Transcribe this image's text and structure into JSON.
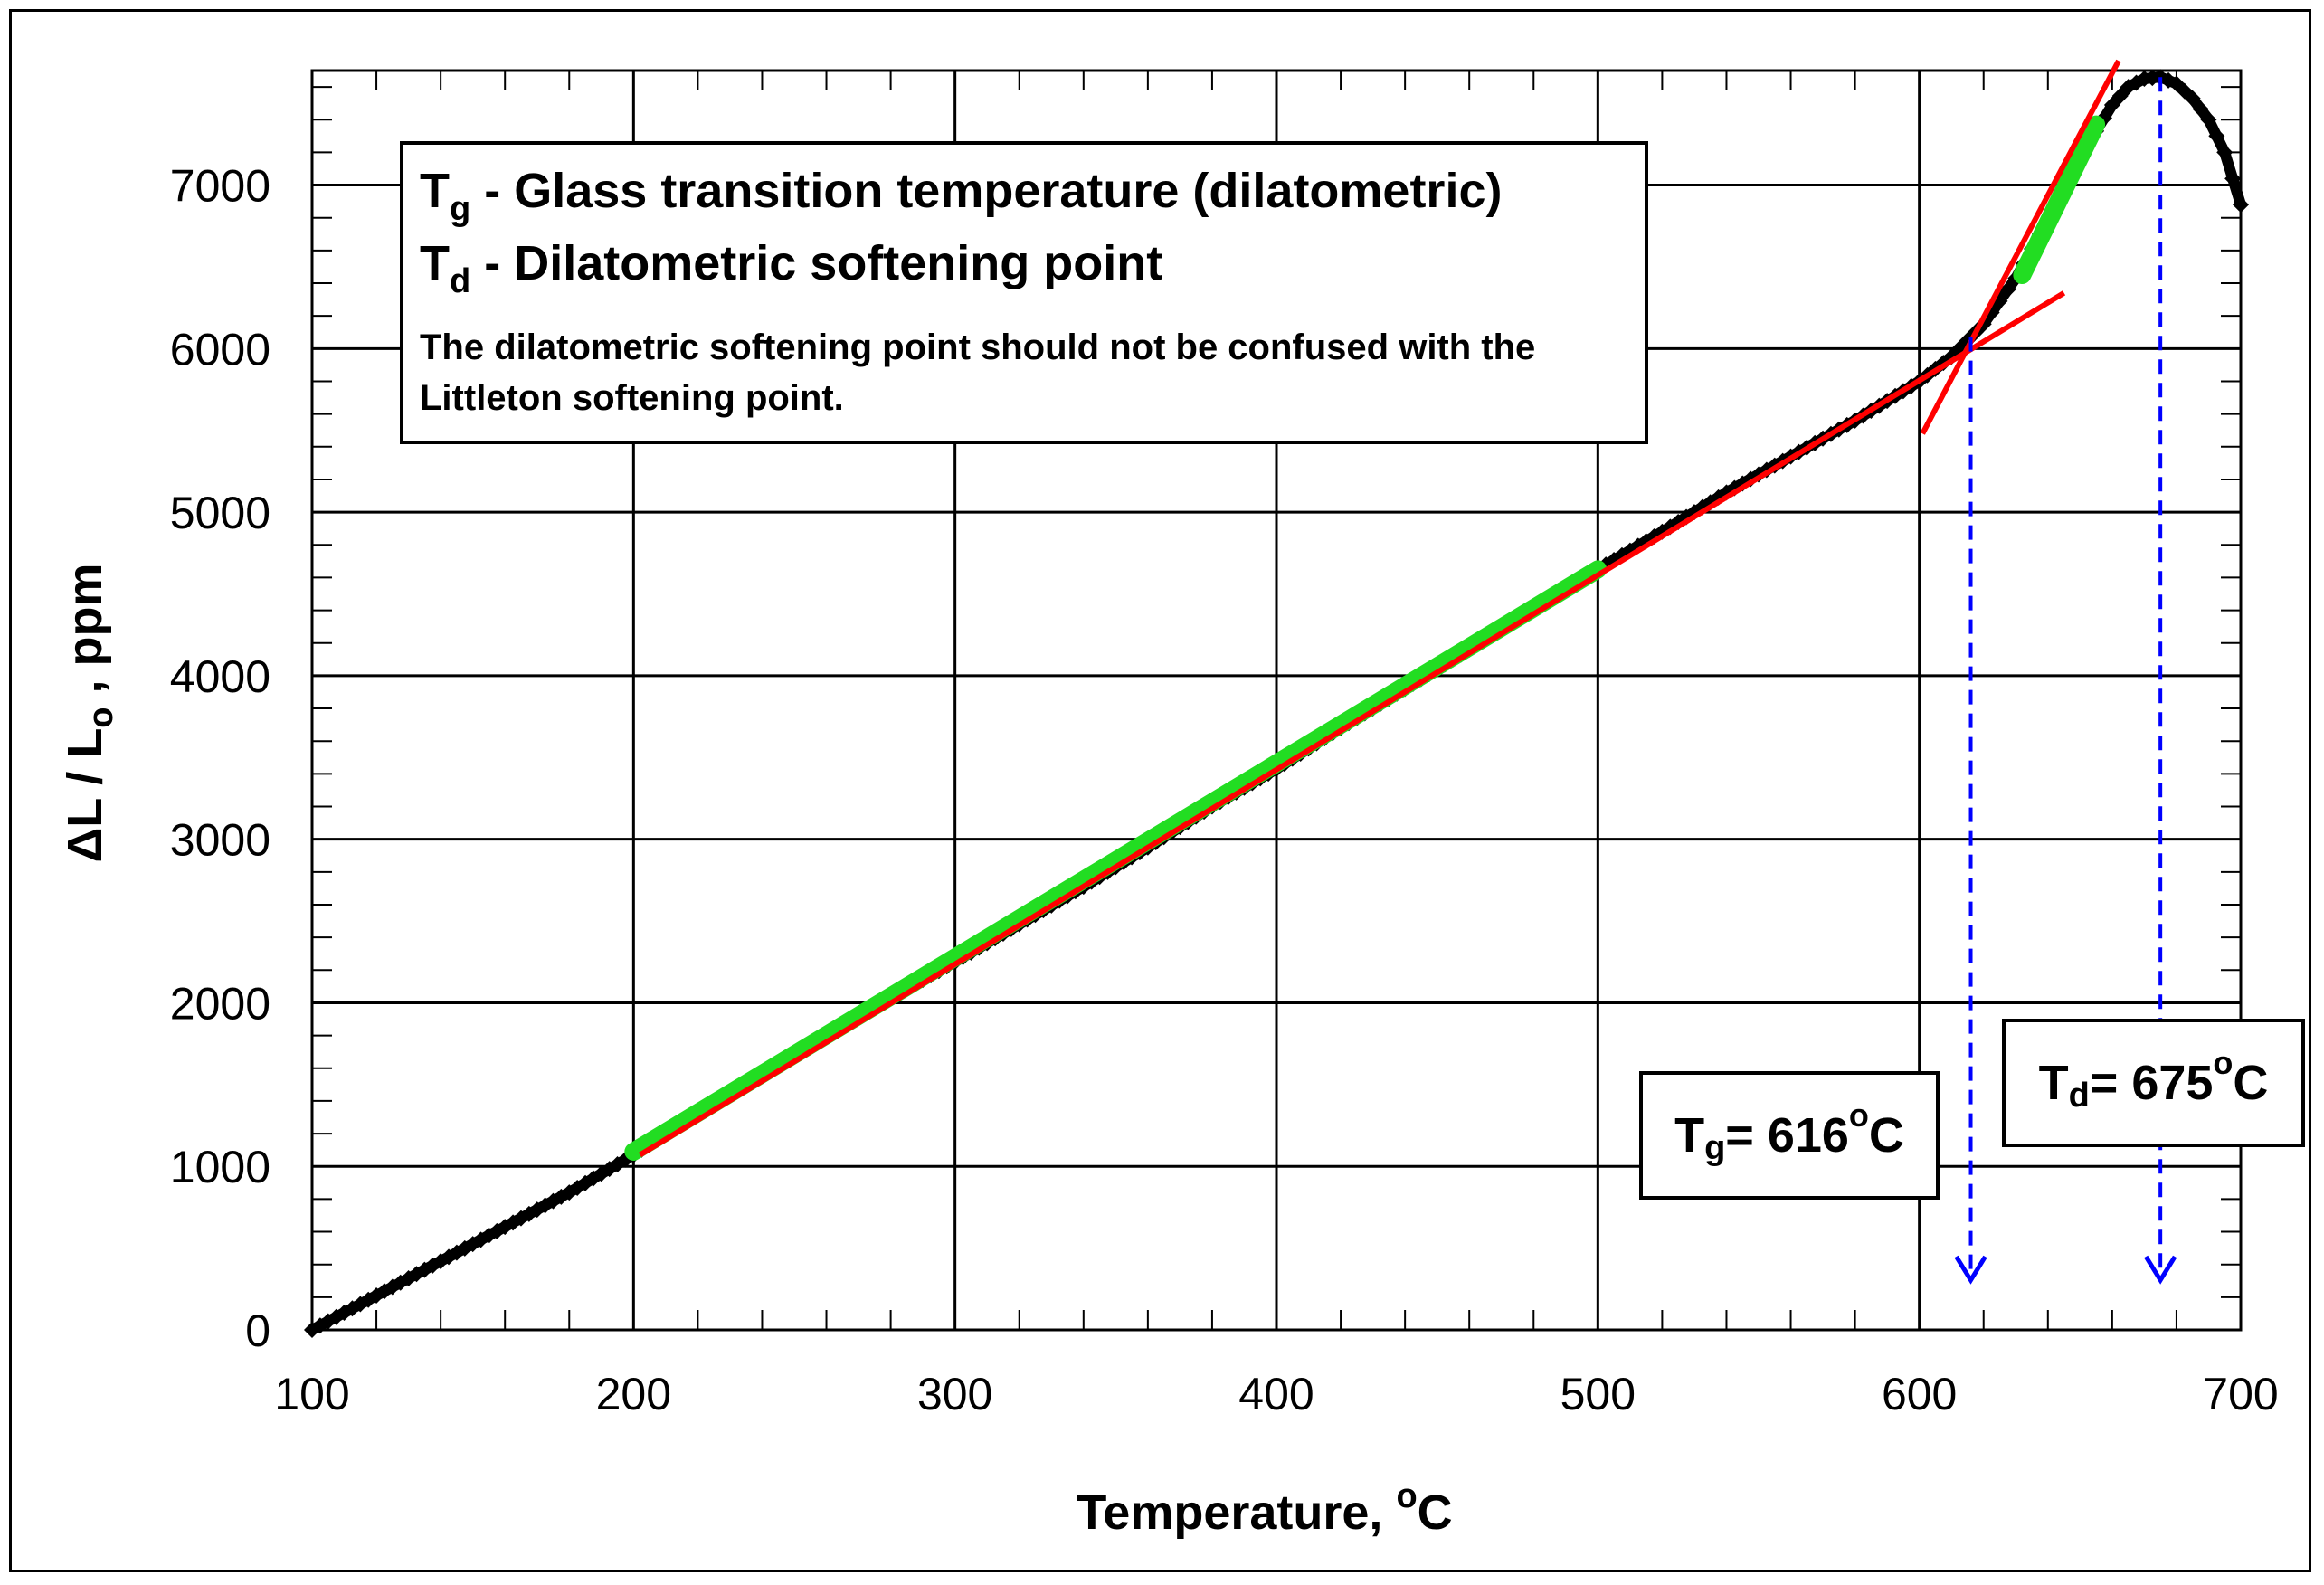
{
  "legend": {
    "tg_symbol": "T",
    "tg_sub": "g",
    "tg_text": " - Glass transition temperature (dilatometric)",
    "td_symbol": "T",
    "td_sub": "d",
    "td_text": " - Dilatometric softening point",
    "note": "The dilatometric softening point should not be confused with the Littleton softening point."
  },
  "annotations": {
    "tg": {
      "symbol": "T",
      "sub": "g",
      "eq": " = 616",
      "deg": "o",
      "unit": "C",
      "value": 616
    },
    "td": {
      "symbol": "T",
      "sub": "d",
      "eq": " = 675",
      "deg": "o",
      "unit": "C",
      "value": 675
    }
  },
  "colors": {
    "data": "#000000",
    "fit_segment": "#22dd22",
    "fit_line": "#ff0000",
    "arrow": "#0000ff",
    "grid": "#000000"
  },
  "chart_data": {
    "type": "scatter",
    "xlabel_main": "Temperature, ",
    "xlabel_sup": "o",
    "xlabel_unit": "C",
    "ylabel_main": "ΔL / L",
    "ylabel_sub": "o",
    "ylabel_unit": " , ppm",
    "xlim": [
      100,
      700
    ],
    "ylim": [
      0,
      7700
    ],
    "xticks": [
      100,
      200,
      300,
      400,
      500,
      600,
      700
    ],
    "yticks": [
      0,
      1000,
      2000,
      3000,
      4000,
      5000,
      6000,
      7000
    ],
    "x_minor_step": 20,
    "y_minor_step": 200,
    "grid": true,
    "series": [
      {
        "role": "measured",
        "x": [
          100,
          120,
          140,
          160,
          180,
          200,
          220,
          240,
          260,
          280,
          300,
          320,
          340,
          360,
          380,
          400,
          420,
          440,
          460,
          480,
          500,
          520,
          540,
          560,
          580,
          600,
          610,
          620,
          630,
          640,
          650,
          660,
          665,
          670,
          675,
          680,
          685,
          690,
          695,
          700
        ],
        "y": [
          0,
          210,
          420,
          630,
          840,
          1070,
          1320,
          1560,
          1800,
          2030,
          2250,
          2480,
          2710,
          2950,
          3200,
          3430,
          3680,
          3920,
          4160,
          4400,
          4650,
          4880,
          5120,
          5340,
          5560,
          5800,
          5950,
          6150,
          6430,
          6790,
          7170,
          7490,
          7600,
          7650,
          7660,
          7620,
          7530,
          7400,
          7200,
          6880
        ]
      },
      {
        "role": "fit-segment",
        "x": [
          200,
          500
        ],
        "y": [
          1090,
          4650
        ]
      },
      {
        "role": "fit-segment",
        "x": [
          632,
          655
        ],
        "y": [
          6450,
          7370
        ]
      }
    ],
    "fit_lines": [
      {
        "x": [
          202,
          645
        ],
        "y": [
          1070,
          6340
        ]
      },
      {
        "x": [
          601,
          662
        ],
        "y": [
          5480,
          7760
        ]
      }
    ]
  }
}
